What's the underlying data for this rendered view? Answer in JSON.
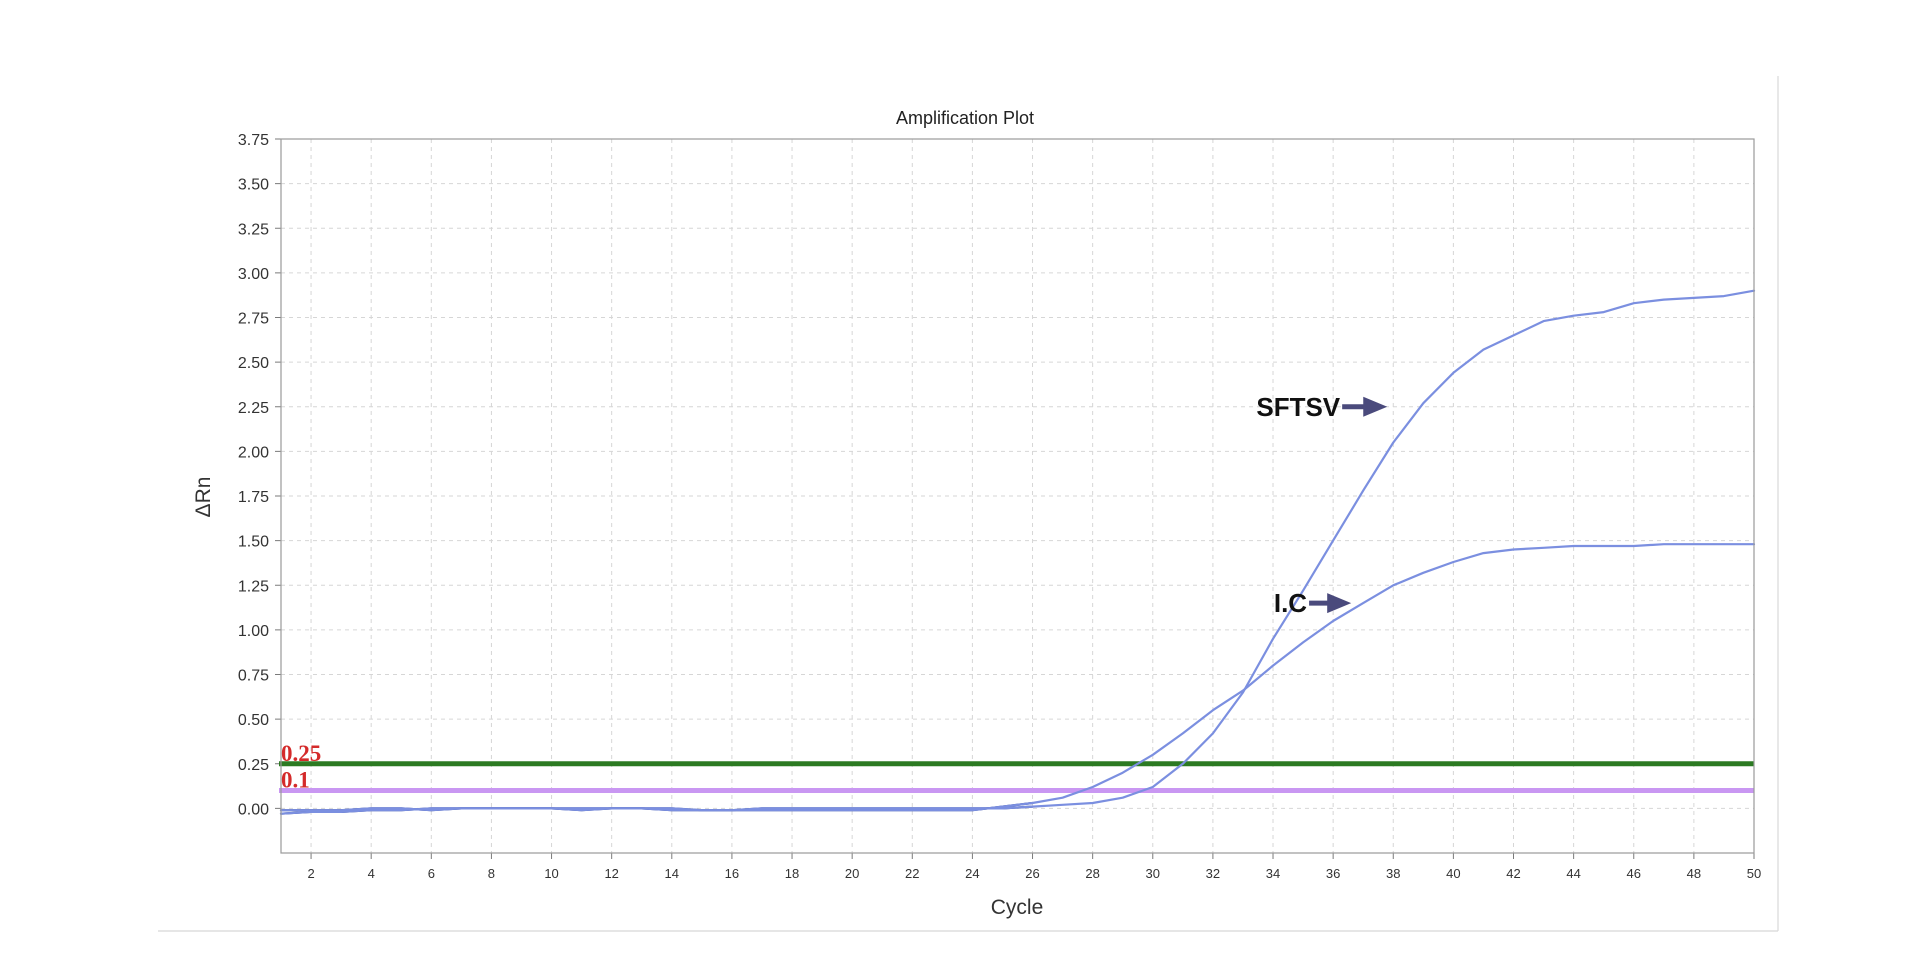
{
  "chart_data": {
    "type": "line",
    "title": "Amplification Plot",
    "xlabel": "Cycle",
    "ylabel": "ΔRn",
    "xlim": [
      1,
      50
    ],
    "ylim": [
      -0.25,
      3.75
    ],
    "x_ticks": [
      2,
      4,
      6,
      8,
      10,
      12,
      14,
      16,
      18,
      20,
      22,
      24,
      26,
      28,
      30,
      32,
      34,
      36,
      38,
      40,
      42,
      44,
      46,
      48,
      50
    ],
    "y_ticks": [
      0.0,
      0.25,
      0.5,
      0.75,
      1.0,
      1.25,
      1.5,
      1.75,
      2.0,
      2.25,
      2.5,
      2.75,
      3.0,
      3.25,
      3.5,
      3.75
    ],
    "grid": true,
    "series_color": "#7b8fe0",
    "baseline_color": "#2b3f8f",
    "series": [
      {
        "x": [
          1,
          2,
          3,
          4,
          5,
          6,
          7,
          8,
          9,
          10,
          11,
          12,
          13,
          14,
          15,
          16,
          17,
          18,
          19,
          20,
          21,
          22,
          23,
          24,
          25,
          26,
          27,
          28,
          29,
          30,
          31,
          32,
          33,
          34,
          35,
          36,
          37,
          38,
          39,
          40,
          41,
          42,
          43,
          44,
          45,
          46,
          47,
          48,
          49,
          50
        ],
        "values": [
          -0.03,
          -0.02,
          -0.02,
          -0.01,
          -0.01,
          0.0,
          0.0,
          0.0,
          0.0,
          0.0,
          0.0,
          0.0,
          0.0,
          0.0,
          -0.01,
          -0.01,
          0.0,
          0.0,
          0.0,
          0.0,
          0.0,
          0.0,
          0.0,
          0.0,
          0.0,
          0.01,
          0.02,
          0.03,
          0.06,
          0.12,
          0.25,
          0.42,
          0.65,
          0.95,
          1.22,
          1.5,
          1.78,
          2.05,
          2.27,
          2.44,
          2.57,
          2.65,
          2.73,
          2.76,
          2.78,
          2.83,
          2.85,
          2.86,
          2.87,
          2.9
        ]
      },
      {
        "x": [
          1,
          2,
          3,
          4,
          5,
          6,
          7,
          8,
          9,
          10,
          11,
          12,
          13,
          14,
          15,
          16,
          17,
          18,
          19,
          20,
          21,
          22,
          23,
          24,
          25,
          26,
          27,
          28,
          29,
          30,
          31,
          32,
          33,
          34,
          35,
          36,
          37,
          38,
          39,
          40,
          41,
          42,
          43,
          44,
          45,
          46,
          47,
          48,
          49,
          50
        ],
        "values": [
          -0.01,
          -0.01,
          -0.01,
          0.0,
          0.0,
          -0.01,
          0.0,
          0.0,
          0.0,
          0.0,
          -0.01,
          0.0,
          0.0,
          -0.01,
          -0.01,
          -0.01,
          -0.01,
          -0.01,
          -0.01,
          -0.01,
          -0.01,
          -0.01,
          -0.01,
          -0.01,
          0.01,
          0.03,
          0.06,
          0.12,
          0.2,
          0.3,
          0.42,
          0.55,
          0.66,
          0.8,
          0.93,
          1.05,
          1.15,
          1.25,
          1.32,
          1.38,
          1.43,
          1.45,
          1.46,
          1.47,
          1.47,
          1.47,
          1.48,
          1.48,
          1.48,
          1.48
        ]
      }
    ],
    "thresholds": [
      {
        "label": "0.25",
        "value": 0.25,
        "color": "#2c7a22"
      },
      {
        "label": "0.1",
        "value": 0.1,
        "color": "#c997f2"
      }
    ],
    "annotations": [
      {
        "label": "SFTSV",
        "arrow_from": [
          36.3,
          2.25
        ],
        "arrow_to": [
          37.8,
          2.25
        ],
        "arrow_color": "#4a4a7c"
      },
      {
        "label": "I.C",
        "arrow_from": [
          35.2,
          1.15
        ],
        "arrow_to": [
          36.6,
          1.15
        ],
        "arrow_color": "#4a4a7c"
      }
    ]
  }
}
